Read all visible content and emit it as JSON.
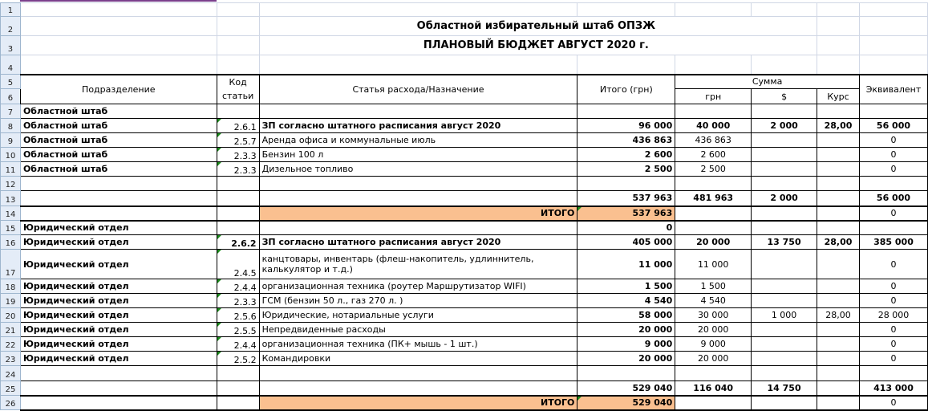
{
  "title1": "Областной избирательный штаб ОПЗЖ",
  "title2": "ПЛАНОВЫЙ БЮДЖЕТ АВГУСТ 2020 г.",
  "headers": {
    "dept": "Подразделение",
    "code": "Код статьи",
    "item": "Статья расхода/Назначение",
    "total": "Итого (грн)",
    "sum": "Сумма",
    "uah": "грн",
    "usd": "$",
    "rate": "Курс",
    "equiv": "Эквивалент"
  },
  "itogo_label": "ИТОГО",
  "colors": {
    "accent_orange": "#fac090",
    "comment_marker": "#1e8c1e"
  },
  "rows": [
    {
      "n": "7",
      "dept": "Областной штаб",
      "code": "",
      "item": "",
      "total": "",
      "uah": "",
      "usd": "",
      "rate": "",
      "equiv": ""
    },
    {
      "n": "8",
      "dept": "Областной штаб",
      "code": "2.6.1",
      "item": "ЗП согласно штатного расписания август 2020",
      "total": "96 000",
      "uah": "40 000",
      "usd": "2 000",
      "rate": "28,00",
      "equiv": "56 000"
    },
    {
      "n": "9",
      "dept": "Областной штаб",
      "code": "2.5.7",
      "item": "Аренда офиса и коммунальные  июль",
      "total": "436 863",
      "uah": "436 863",
      "usd": "",
      "rate": "",
      "equiv": "0"
    },
    {
      "n": "10",
      "dept": "Областной штаб",
      "code": "2.3.3",
      "item": "Бензин 100 л",
      "total": "2 600",
      "uah": "2 600",
      "usd": "",
      "rate": "",
      "equiv": "0"
    },
    {
      "n": "11",
      "dept": "Областной штаб",
      "code": "2.3.3",
      "item": "Дизельное топливо",
      "total": "2 500",
      "uah": "2 500",
      "usd": "",
      "rate": "",
      "equiv": "0"
    },
    {
      "n": "12",
      "dept": "",
      "code": "",
      "item": "",
      "total": "",
      "uah": "",
      "usd": "",
      "rate": "",
      "equiv": ""
    },
    {
      "n": "13",
      "dept": "",
      "code": "",
      "item": "",
      "total": "537 963",
      "uah": "481 963",
      "usd": "2 000",
      "rate": "",
      "equiv": "56 000"
    },
    {
      "n": "14",
      "dept": "",
      "code": "",
      "item": "ИТОГО",
      "total": "537 963",
      "uah": "",
      "usd": "",
      "rate": "",
      "equiv": "0"
    },
    {
      "n": "15",
      "dept": "Юридический отдел",
      "code": "",
      "item": "",
      "total": "0",
      "uah": "",
      "usd": "",
      "rate": "",
      "equiv": ""
    },
    {
      "n": "16",
      "dept": "Юридический отдел",
      "code": "2.6.2",
      "item": "ЗП согласно штатного расписания август 2020",
      "total": "405 000",
      "uah": "20 000",
      "usd": "13 750",
      "rate": "28,00",
      "equiv": "385 000"
    },
    {
      "n": "17",
      "dept": "Юридический отдел",
      "code": "2.4.5",
      "item": "канцтовары, инвентарь (флеш-накопитель, удлиннитель, калькулятор и т.д.)",
      "total": "11 000",
      "uah": "11 000",
      "usd": "",
      "rate": "",
      "equiv": "0"
    },
    {
      "n": "18",
      "dept": "Юридический отдел",
      "code": "2.4.4",
      "item": "организационная техника (роутер Маршрутизатор WIFI)",
      "total": "1 500",
      "uah": "1 500",
      "usd": "",
      "rate": "",
      "equiv": "0"
    },
    {
      "n": "19",
      "dept": "Юридический отдел",
      "code": "2.3.3",
      "item": "ГСМ (бензин 50 л., газ 270 л. )",
      "total": "4 540",
      "uah": "4 540",
      "usd": "",
      "rate": "",
      "equiv": "0"
    },
    {
      "n": "20",
      "dept": "Юридический отдел",
      "code": "2.5.6",
      "item": "Юридические, нотариальные услуги",
      "total": "58 000",
      "uah": "30 000",
      "usd": "1 000",
      "rate": "28,00",
      "equiv": "28 000"
    },
    {
      "n": "21",
      "dept": "Юридический отдел",
      "code": "2.5.5",
      "item": "Непредвиденные расходы",
      "total": "20 000",
      "uah": "20 000",
      "usd": "",
      "rate": "",
      "equiv": "0"
    },
    {
      "n": "22",
      "dept": "Юридический отдел",
      "code": "2.4.4",
      "item": "организационная техника (ПК+ мышь - 1 шт.)",
      "total": "9 000",
      "uah": "9 000",
      "usd": "",
      "rate": "",
      "equiv": "0"
    },
    {
      "n": "23",
      "dept": "Юридический отдел",
      "code": "2.5.2",
      "item": "Командировки",
      "total": "20 000",
      "uah": "20 000",
      "usd": "",
      "rate": "",
      "equiv": "0"
    },
    {
      "n": "24",
      "dept": "",
      "code": "",
      "item": "",
      "total": "",
      "uah": "",
      "usd": "",
      "rate": "",
      "equiv": ""
    },
    {
      "n": "25",
      "dept": "",
      "code": "",
      "item": "",
      "total": "529 040",
      "uah": "116 040",
      "usd": "14 750",
      "rate": "",
      "equiv": "413 000"
    },
    {
      "n": "26",
      "dept": "",
      "code": "",
      "item": "ИТОГО",
      "total": "529 040",
      "uah": "",
      "usd": "",
      "rate": "",
      "equiv": "0"
    }
  ]
}
